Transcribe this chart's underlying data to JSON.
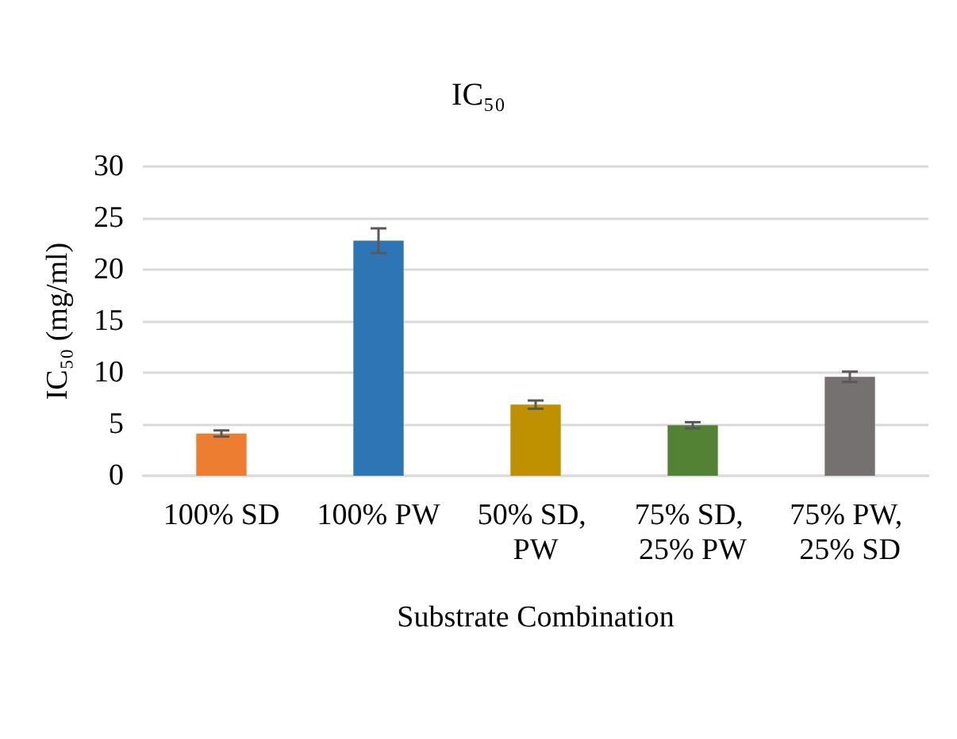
{
  "chart_data": {
    "type": "bar",
    "title": "IC₅₀",
    "xlabel": "Substrate Combination",
    "ylabel": "IC₅₀ (mg/ml)",
    "categories": [
      "100% SD",
      "100% PW",
      "50% SD, PW",
      "75% SD, 25% PW",
      "75% PW, 25% SD"
    ],
    "values": [
      4.1,
      22.8,
      6.9,
      4.9,
      9.6
    ],
    "errors": [
      0.3,
      1.2,
      0.4,
      0.3,
      0.5
    ],
    "colors": [
      "#ed7d31",
      "#2e75b6",
      "#bf9000",
      "#548235",
      "#767171"
    ],
    "ylim": [
      0,
      30
    ],
    "yticks": [
      0,
      5,
      10,
      15,
      20,
      25,
      30
    ],
    "grid": "y"
  }
}
